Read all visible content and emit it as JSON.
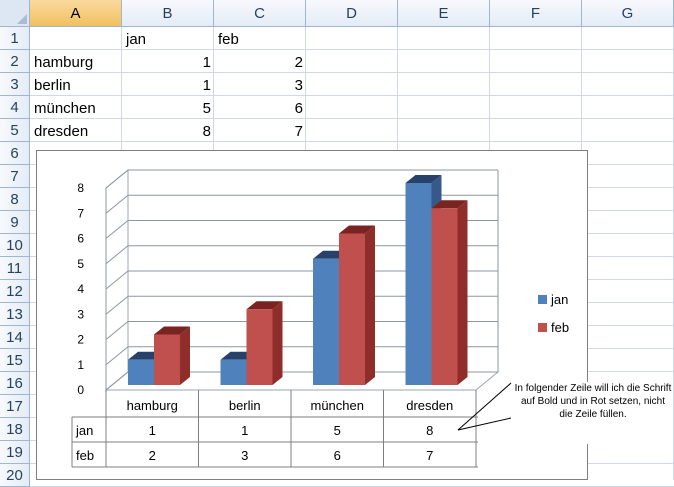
{
  "columns": [
    "A",
    "B",
    "C",
    "D",
    "E",
    "F",
    "G"
  ],
  "selected_column": "A",
  "rows": [
    "1",
    "2",
    "3",
    "4",
    "5",
    "6",
    "7",
    "8",
    "9",
    "10",
    "11",
    "12",
    "13",
    "14",
    "15",
    "16",
    "17",
    "18",
    "19",
    "20"
  ],
  "cells": {
    "B1": "jan",
    "C1": "feb",
    "A2": "hamburg",
    "B2": "1",
    "C2": "2",
    "A3": "berlin",
    "B3": "1",
    "C3": "3",
    "A4": "münchen",
    "B4": "5",
    "C4": "6",
    "A5": "dresden",
    "B5": "8",
    "C5": "7"
  },
  "comment": "In folgender Zeile will ich die Schrift auf Bold und in Rot setzen, nicht die Zeile füllen.",
  "colors": {
    "jan": "#4f81bd",
    "feb": "#c0504d",
    "grid": "#b9c5d6",
    "header_bg": "#dde7f3"
  },
  "chart_data": {
    "type": "bar",
    "categories": [
      "hamburg",
      "berlin",
      "münchen",
      "dresden"
    ],
    "series": [
      {
        "name": "jan",
        "values": [
          1,
          1,
          5,
          8
        ]
      },
      {
        "name": "feb",
        "values": [
          2,
          3,
          6,
          7
        ]
      }
    ],
    "yticks": [
      "0",
      "1",
      "2",
      "3",
      "4",
      "5",
      "6",
      "7",
      "8"
    ],
    "ylim": [
      0,
      8
    ],
    "grid": true,
    "legend": "right",
    "data_table": true,
    "style": "3d-clustered-column"
  }
}
